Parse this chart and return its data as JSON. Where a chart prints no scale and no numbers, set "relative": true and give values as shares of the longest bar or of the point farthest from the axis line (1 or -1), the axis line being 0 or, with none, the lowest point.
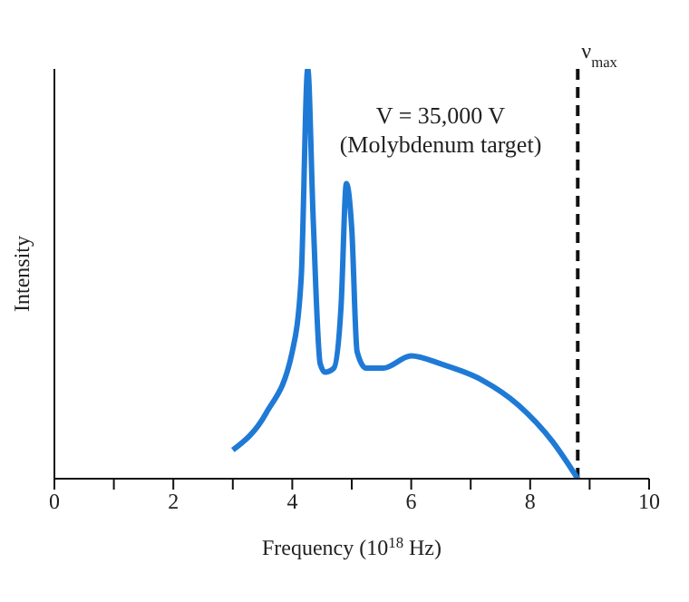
{
  "chart_data": {
    "type": "line",
    "relative": true,
    "xlabel": "Frequency (10$^{18}$ Hz)",
    "ylabel": "Intensity",
    "marker": "none",
    "color": "#1f7ad6",
    "annotations": [
      "V = 35,000 V",
      "(Molybdenum target)"
    ],
    "xlim": [
      0,
      10
    ],
    "xticks": [
      0,
      {
        "value": 1,
        "label": null
      },
      2,
      {
        "value": 3,
        "label": null
      },
      4,
      {
        "value": 5,
        "label": null
      },
      6,
      {
        "value": 7,
        "label": null
      },
      8,
      {
        "value": 9,
        "label": null
      },
      10
    ],
    "x": [
      3.0,
      3.56,
      4.0,
      4.15,
      4.26,
      4.35,
      4.47,
      4.55,
      4.7,
      4.82,
      4.91,
      5.0,
      5.09,
      5.24,
      5.53,
      6.0,
      6.5,
      7.2,
      7.8,
      8.38,
      8.8
    ],
    "values": [
      0.07,
      0.16,
      0.31,
      0.49,
      1.0,
      0.64,
      0.28,
      0.26,
      0.27,
      0.42,
      0.72,
      0.61,
      0.31,
      0.27,
      0.27,
      0.3,
      0.28,
      0.24,
      0.18,
      0.09,
      0
    ],
    "ref_lines": [
      {
        "axis": "x",
        "value": 8.8,
        "label": "ν$_{max}$",
        "line_style": "dashed"
      }
    ]
  }
}
